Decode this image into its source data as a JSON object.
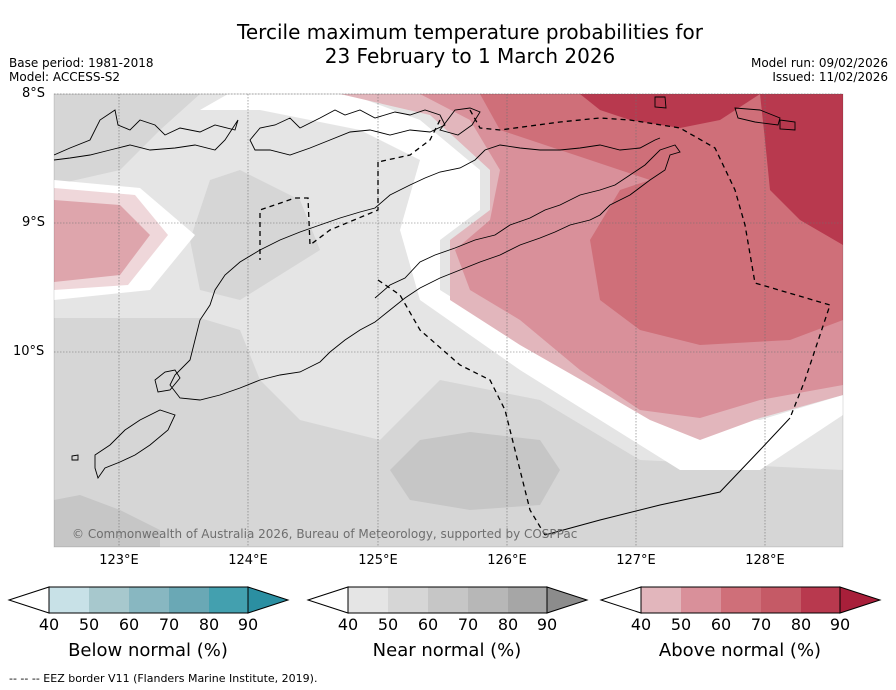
{
  "title": {
    "line1": "Tercile maximum temperature probabilities for",
    "line2": "23 February to 1 March 2026"
  },
  "meta": {
    "base_period": "Base period: 1981-2018",
    "model": "Model: ACCESS-S2",
    "model_run": "Model run: 09/02/2026",
    "issued": "Issued: 11/02/2026"
  },
  "axes": {
    "lat_labels": [
      "8°S",
      "9°S",
      "10°S"
    ],
    "lon_labels": [
      "123°E",
      "124°E",
      "125°E",
      "126°E",
      "127°E",
      "128°E"
    ]
  },
  "copyright": "© Commonwealth of Australia 2026, Bureau of Meteorology, supported by COSPPac",
  "colorbars": [
    {
      "name": "below",
      "title": "Below normal (%)",
      "ticks": [
        "40",
        "50",
        "60",
        "70",
        "80",
        "90"
      ],
      "colors": [
        "#ffffff",
        "#c8e1e7",
        "#a7c8cd",
        "#88b7c1",
        "#6aa8b5",
        "#43a0af",
        "#2b8fa2"
      ]
    },
    {
      "name": "near",
      "title": "Near normal (%)",
      "ticks": [
        "40",
        "50",
        "60",
        "70",
        "80",
        "90"
      ],
      "colors": [
        "#ffffff",
        "#e5e5e5",
        "#d6d6d6",
        "#c6c6c6",
        "#b7b7b7",
        "#a6a6a6",
        "#8c8c8c"
      ]
    },
    {
      "name": "above",
      "title": "Above normal (%)",
      "ticks": [
        "40",
        "50",
        "60",
        "70",
        "80",
        "90"
      ],
      "colors": [
        "#ffffff",
        "#e2b6bc",
        "#d9909a",
        "#cf6f79",
        "#c55a66",
        "#b8394e",
        "#a81f3a"
      ]
    }
  ],
  "footnote": "--  --  -- EEZ border V11 (Flanders Marine Institute, 2019)."
}
